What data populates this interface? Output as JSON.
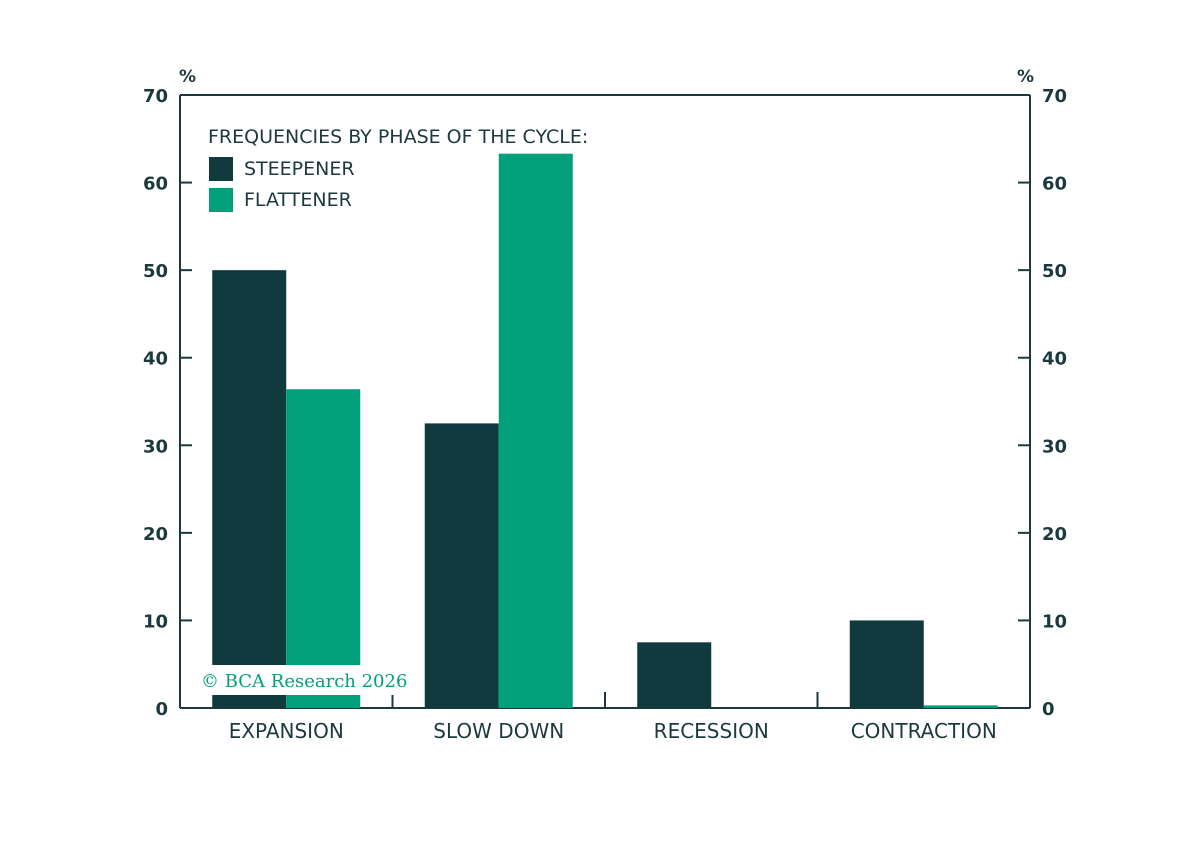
{
  "chart_data": {
    "type": "bar",
    "categories": [
      "EXPANSION",
      "SLOW DOWN",
      "RECESSION",
      "CONTRACTION"
    ],
    "series": [
      {
        "name": "STEEPENER",
        "values": [
          50.0,
          32.5,
          7.5,
          10.0
        ],
        "color": "#103a3e"
      },
      {
        "name": "FLATTENER",
        "values": [
          36.4,
          63.3,
          0.0,
          0.3
        ],
        "color": "#01a07a"
      }
    ],
    "legend_title": "FREQUENCIES BY PHASE OF THE CYCLE:",
    "legend_position": "top-left",
    "y_unit_left": "%",
    "y_unit_right": "%",
    "ylim": [
      0,
      70
    ],
    "yticks": [
      "0",
      "10",
      "20",
      "30",
      "40",
      "50",
      "60",
      "70"
    ],
    "credit": "© BCA Research 2026",
    "credit_color": "#01a07a",
    "axis_color": "#1c3a3e",
    "grid": false
  }
}
